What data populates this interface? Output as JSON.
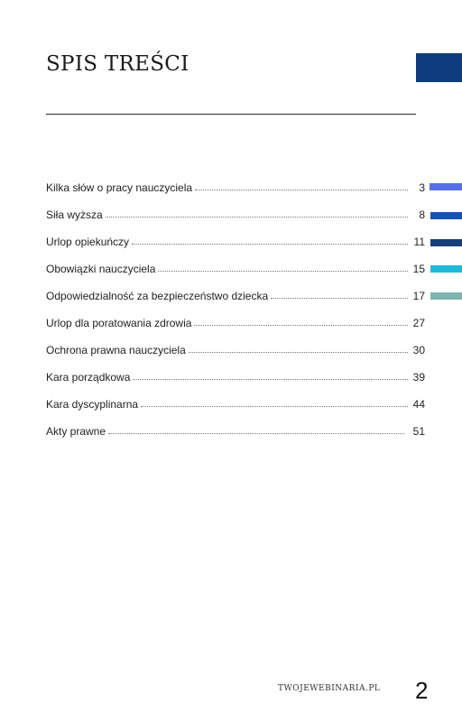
{
  "title": "SPIS TREŚCI",
  "toc": [
    {
      "label": "Kilka słów o pracy nauczyciela",
      "page": "3"
    },
    {
      "label": "Siła wyższa",
      "page": "8"
    },
    {
      "label": "Urlop opiekuńczy",
      "page": "11"
    },
    {
      "label": "Obowiązki nauczyciela",
      "page": "15"
    },
    {
      "label": "Odpowiedzialność za bezpieczeństwo dziecka",
      "page": "17"
    },
    {
      "label": "Urlop dla poratowania zdrowia",
      "page": "27"
    },
    {
      "label": "Ochrona prawna nauczyciela",
      "page": "30"
    },
    {
      "label": "Kara porządkowa",
      "page": "39"
    },
    {
      "label": "Kara dyscyplinarna",
      "page": "44"
    },
    {
      "label": "Akty prawne",
      "page": "51"
    }
  ],
  "footer": {
    "site": "TWOJEWEBINARIA.PL",
    "page_number": "2"
  },
  "colors": {
    "accent_block": "#0f3c7d",
    "tabs": [
      "#5671e8",
      "#1653b5",
      "#183f78",
      "#21b8dd",
      "#7fb3b0"
    ]
  }
}
